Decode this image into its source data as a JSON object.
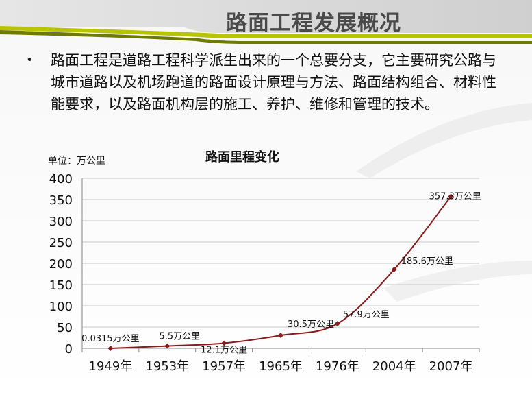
{
  "slide": {
    "title": "路面工程发展概况",
    "bullet_text": "路面工程是道路工程科学派生出来的一个总要分支，它主要研究公路与城市道路以及机场跑道的路面设计原理与方法、路面结构组合、材料性能要求，以及路面机构层的施工、养护、维修和管理的技术。"
  },
  "chart_data": {
    "type": "line",
    "title": "路面里程变化",
    "unit_label": "单位：万公里",
    "categories": [
      "1949年",
      "1953年",
      "1957年",
      "1965年",
      "1976年",
      "2004年",
      "2007年"
    ],
    "series": [
      {
        "values": [
          0.0315,
          5.5,
          12.1,
          30.5,
          57.9,
          185.6,
          357.3
        ],
        "data_labels": [
          "0.0315万公里",
          "5.5万公里",
          "12.1万公里",
          "30.5万公里",
          "57.9万公里",
          "185.6万公里",
          "357.3万公里"
        ],
        "color": "#8b1a1a"
      }
    ],
    "ylim": [
      0,
      400
    ],
    "yticks": [
      0,
      50,
      100,
      150,
      200,
      250,
      300,
      350,
      400
    ],
    "grid": true
  }
}
